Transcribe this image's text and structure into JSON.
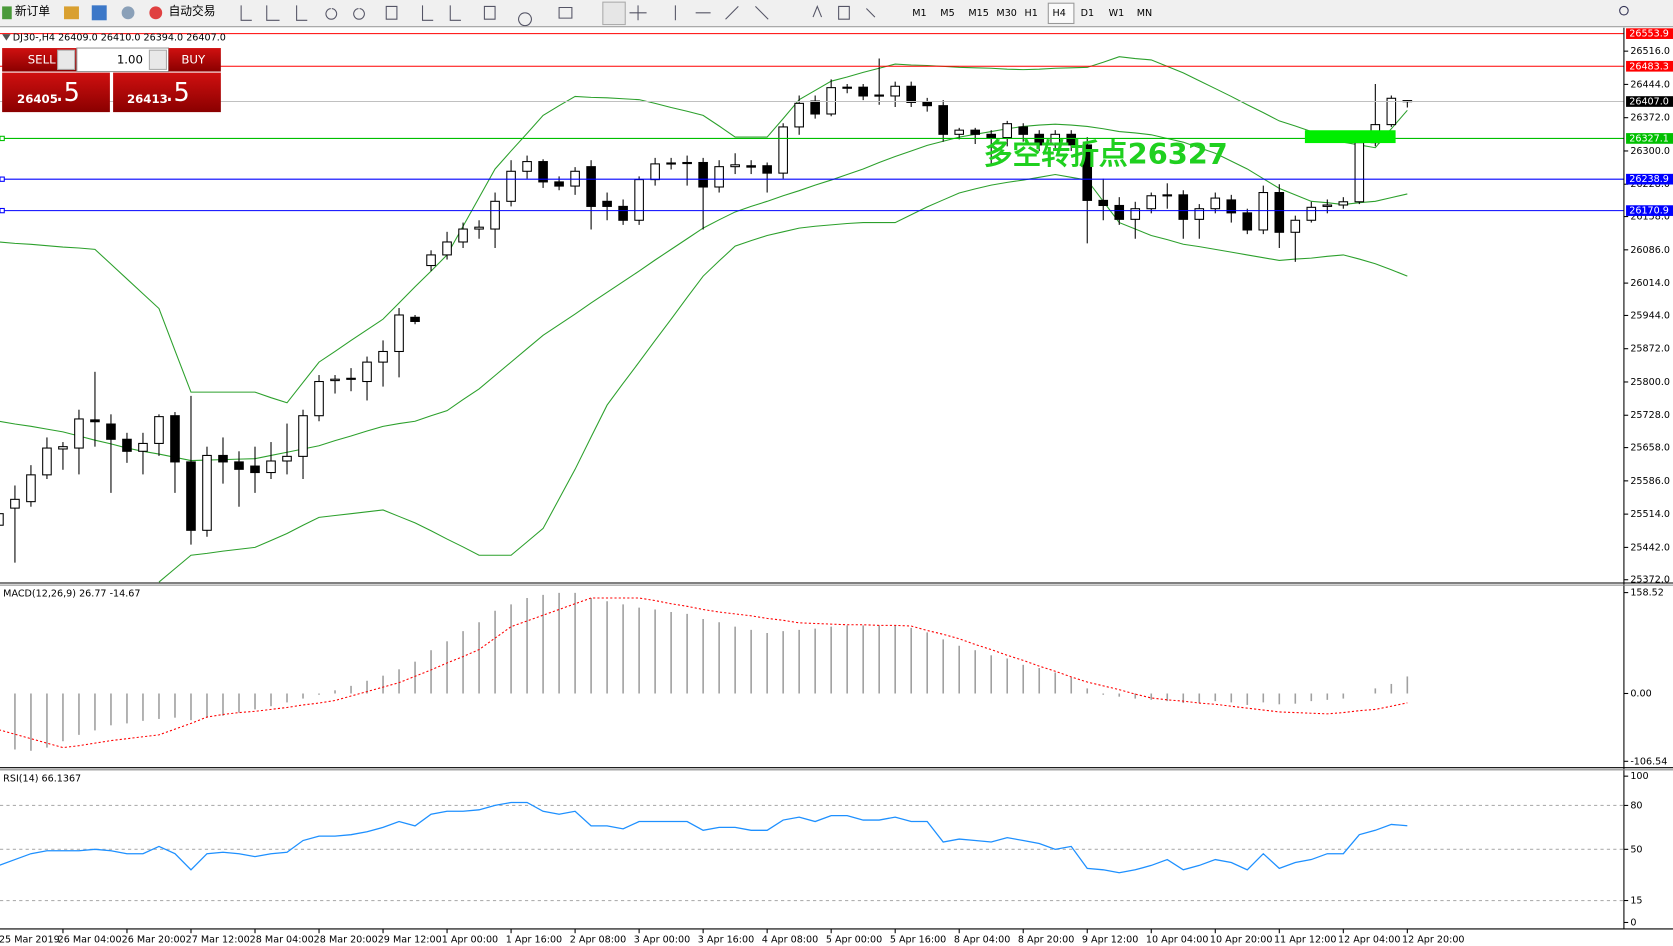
{
  "toolbar": {
    "new_order": "新订单",
    "auto_trading": "自动交易",
    "timeframes": [
      "M1",
      "M5",
      "M15",
      "M30",
      "H1",
      "H4",
      "D1",
      "W1",
      "MN"
    ],
    "active": "H4"
  },
  "trade_panel": {
    "sell": "SELL",
    "buy": "BUY",
    "lots": "1.00",
    "bid_main": "26405",
    "bid_pip": ".5",
    "ask_main": "26413",
    "ask_pip": ".5"
  },
  "chart_data": [
    {
      "type": "candlestick",
      "title": "DJ30-,H4 26409.0 26410.0 26394.0 26407.0",
      "categories": [
        "25 Mar 2019",
        null,
        null,
        null,
        "26 Mar 04:00",
        null,
        null,
        null,
        "26 Mar 20:00",
        null,
        null,
        null,
        "27 Mar 12:00",
        null,
        null,
        null,
        "28 Mar 04:00",
        null,
        null,
        null,
        "28 Mar 20:00",
        null,
        null,
        null,
        "29 Mar 12:00",
        null,
        null,
        null,
        "1 Apr 00:00",
        null,
        null,
        null,
        "1 Apr 16:00",
        null,
        null,
        null,
        "2 Apr 08:00",
        null,
        null,
        null,
        "3 Apr 00:00",
        null,
        null,
        null,
        "3 Apr 16:00",
        null,
        null,
        null,
        "4 Apr 08:00",
        null,
        null,
        null,
        "5 Apr 00:00",
        null,
        null,
        null,
        "5 Apr 16:00",
        null,
        null,
        null,
        "8 Apr 04:00",
        null,
        null,
        null,
        "8 Apr 20:00",
        null,
        null,
        null,
        "9 Apr 12:00",
        null,
        null,
        null,
        "10 Apr 04:00",
        null,
        null,
        null,
        "10 Apr 20:00",
        null,
        null,
        null,
        "11 Apr 12:00",
        null,
        null,
        null,
        "12 Apr 04:00",
        null,
        null,
        null,
        "12 Apr 20:00"
      ],
      "open": [
        25490,
        25527,
        25541,
        25599,
        25655,
        25657,
        25718,
        25709,
        25676,
        25650,
        25667,
        25727,
        25627,
        25479,
        25641,
        25627,
        25618,
        25604,
        25629,
        25639,
        25727,
        25803,
        25806,
        25801,
        25843,
        25866,
        25940,
        26052,
        26075,
        26103,
        26131,
        26131,
        26191,
        26256,
        26277,
        26233,
        26224,
        26266,
        26191,
        26180,
        26150,
        26238,
        26272,
        26274,
        26275,
        26222,
        26266,
        26268,
        26268,
        26252,
        26352,
        26408,
        26380,
        26436,
        26438,
        26419,
        26419,
        26440,
        26405,
        26398,
        26336,
        26345,
        26336,
        26329,
        26352,
        26336,
        26313,
        26336,
        26313,
        26193,
        26182,
        26152,
        26175,
        26203,
        26205,
        26152,
        26175,
        26194,
        26166,
        26129,
        26210,
        26124,
        26150,
        26180,
        26183,
        26190,
        26318,
        26357,
        26409
      ],
      "high": [
        25530,
        25576,
        25620,
        25680,
        25670,
        25740,
        25822,
        25730,
        25690,
        25690,
        25730,
        25735,
        25770,
        25660,
        25680,
        25650,
        25660,
        25670,
        25710,
        25740,
        25815,
        25815,
        25830,
        25855,
        25890,
        25960,
        25945,
        26085,
        26125,
        26145,
        26150,
        26210,
        26280,
        26290,
        26282,
        26245,
        26265,
        26280,
        26210,
        26195,
        26245,
        26285,
        26285,
        26290,
        26285,
        26280,
        26295,
        26280,
        26275,
        26360,
        26420,
        26420,
        26455,
        26445,
        26445,
        26500,
        26450,
        26450,
        26415,
        26410,
        26350,
        26350,
        26345,
        26365,
        26360,
        26345,
        26345,
        26345,
        26330,
        26240,
        26200,
        26190,
        26210,
        26230,
        26215,
        26185,
        26210,
        26205,
        26175,
        26225,
        26228,
        26160,
        26190,
        26195,
        26200,
        26325,
        26445,
        26420,
        26410
      ],
      "low": [
        25470,
        25409,
        25530,
        25590,
        25610,
        25600,
        25660,
        25560,
        25625,
        25600,
        25640,
        25560,
        25448,
        25465,
        25580,
        25530,
        25560,
        25590,
        25600,
        25590,
        25715,
        25775,
        25780,
        25760,
        25790,
        25810,
        25925,
        26040,
        26065,
        26090,
        26110,
        26090,
        26180,
        26240,
        26220,
        26215,
        26205,
        26130,
        26150,
        26140,
        26140,
        26225,
        26260,
        26225,
        26130,
        26210,
        26250,
        26250,
        26210,
        26240,
        26335,
        26370,
        26375,
        26425,
        26410,
        26400,
        26395,
        26395,
        26385,
        26320,
        26325,
        26315,
        26270,
        26310,
        26320,
        26300,
        26300,
        26300,
        26100,
        26150,
        26140,
        26110,
        26165,
        26175,
        26110,
        26110,
        26165,
        26145,
        26120,
        26120,
        26090,
        26060,
        26145,
        26165,
        26175,
        26185,
        26310,
        26352,
        26394
      ],
      "close": [
        25515,
        25546,
        25599,
        25657,
        25660,
        25720,
        25714,
        25676,
        25650,
        25667,
        25725,
        25627,
        25479,
        25641,
        25627,
        25611,
        25604,
        25629,
        25639,
        25727,
        25801,
        25806,
        25808,
        25843,
        25866,
        25945,
        25931,
        26075,
        26103,
        26131,
        26135,
        26191,
        26256,
        26277,
        26233,
        26224,
        26256,
        26180,
        26180,
        26150,
        26238,
        26272,
        26274,
        26275,
        26222,
        26266,
        26270,
        26265,
        26252,
        26352,
        26403,
        26380,
        26437,
        26438,
        26419,
        26421,
        26440,
        26405,
        26398,
        26336,
        26345,
        26336,
        26329,
        26359,
        26336,
        26313,
        26336,
        26313,
        26193,
        26182,
        26152,
        26175,
        26203,
        26205,
        26152,
        26175,
        26198,
        26166,
        26129,
        26210,
        26124,
        26150,
        26178,
        26183,
        26190,
        26318,
        26357,
        26414,
        26407
      ],
      "overlays": [
        {
          "color": "#2ca02c",
          "values": [
            26103,
            26100,
            26098,
            26095,
            26092,
            26090,
            26087,
            26055,
            26023,
            25991,
            25959,
            25868,
            25778,
            25778,
            25778,
            25778,
            25778,
            25766,
            25755,
            25799,
            25843,
            25866,
            25890,
            25913,
            25936,
            25971,
            26006,
            26040,
            26075,
            26137,
            26199,
            26261,
            26300,
            26338,
            26377,
            26398,
            26418,
            26416,
            26415,
            26413,
            26411,
            26403,
            26394,
            26386,
            26377,
            26354,
            26330,
            26330,
            26330,
            26370,
            26411,
            26431,
            26451,
            26460,
            26470,
            26479,
            26488,
            26486,
            26485,
            26483,
            26481,
            26480,
            26479,
            26477,
            26476,
            26477,
            26479,
            26480,
            26481,
            26492,
            26504,
            26500,
            26497,
            26483,
            26469,
            26452,
            26435,
            26418,
            26400,
            26383,
            26365,
            26354,
            26342,
            26331,
            26319,
            26313,
            26307,
            26348,
            26388
          ]
        },
        {
          "color": "#2ca02c",
          "values": [
            25715,
            25709,
            25704,
            25698,
            25692,
            25683,
            25674,
            25666,
            25657,
            25650,
            25644,
            25637,
            25630,
            25631,
            25632,
            25633,
            25634,
            25641,
            25648,
            25655,
            25662,
            25673,
            25683,
            25694,
            25704,
            25710,
            25715,
            25727,
            25738,
            25762,
            25785,
            25814,
            25843,
            25872,
            25901,
            25924,
            25947,
            25971,
            25994,
            26017,
            26040,
            26064,
            26087,
            26110,
            26133,
            26151,
            26168,
            26180,
            26191,
            26203,
            26214,
            26226,
            26237,
            26249,
            26261,
            26275,
            26288,
            26300,
            26312,
            26321,
            26330,
            26336,
            26342,
            26348,
            26353,
            26356,
            26358,
            26356,
            26353,
            26348,
            26342,
            26339,
            26335,
            26327,
            26319,
            26307,
            26295,
            26278,
            26261,
            26240,
            26219,
            26205,
            26191,
            26188,
            26184,
            26188,
            26191,
            26199,
            26207
          ]
        },
        {
          "color": "#2ca02c",
          "values": [
            null,
            null,
            null,
            null,
            null,
            null,
            null,
            null,
            null,
            null,
            25367,
            25396,
            25425,
            25429,
            25434,
            25438,
            25442,
            25457,
            25472,
            25490,
            25507,
            25511,
            25515,
            25519,
            25523,
            25509,
            25495,
            25478,
            25460,
            25443,
            25425,
            25425,
            25425,
            25454,
            25483,
            25547,
            25611,
            25681,
            25750,
            25797,
            25843,
            25890,
            25936,
            25983,
            26029,
            26062,
            26094,
            26106,
            26117,
            26125,
            26133,
            26137,
            26140,
            26143,
            26145,
            26145,
            26145,
            26162,
            26179,
            26194,
            26209,
            26218,
            26226,
            26232,
            26237,
            26243,
            26249,
            26243,
            26237,
            26191,
            26145,
            26131,
            26117,
            26108,
            26098,
            26093,
            26087,
            26081,
            26075,
            26069,
            26063,
            26066,
            26068,
            26072,
            26075,
            26066,
            26056,
            26043,
            26029
          ]
        }
      ],
      "hlines": [
        {
          "value": 26553.9,
          "color": "#ff0000"
        },
        {
          "value": 26483.3,
          "color": "#ff0000"
        },
        {
          "value": 26407,
          "label": "26407.0",
          "color": "#c0c0c0",
          "tag_color": "#000000"
        },
        {
          "value": 26327.1,
          "color": "#00c000"
        },
        {
          "value": 26238.9,
          "color": "#0000ff"
        },
        {
          "value": 26170.9,
          "color": "#0000ff"
        }
      ],
      "annotation": "多空转折点26327",
      "annotation_color": "#1fd01f",
      "ylim": [
        25365,
        26562
      ],
      "yticks": [
        {
          "value": 26516,
          "label": "26516.0"
        },
        {
          "value": 26444,
          "label": "26444.0"
        },
        {
          "value": 26372,
          "label": "26372.0"
        },
        {
          "value": 26300,
          "label": "26300.0"
        },
        {
          "value": 26228,
          "label": "26228.0"
        },
        {
          "value": 26158,
          "label": "26158.0"
        },
        {
          "value": 26086,
          "label": "26086.0"
        },
        {
          "value": 26014,
          "label": "26014.0"
        },
        {
          "value": 25944,
          "label": "25944.0"
        },
        {
          "value": 25872,
          "label": "25872.0"
        },
        {
          "value": 25800,
          "label": "25800.0"
        },
        {
          "value": 25728,
          "label": "25728.0"
        },
        {
          "value": 25658,
          "label": "25658.0"
        },
        {
          "value": 25586,
          "label": "25586.0"
        },
        {
          "value": 25514,
          "label": "25514.0"
        },
        {
          "value": 25442,
          "label": "25442.0"
        },
        {
          "value": 25372,
          "label": "25372.0"
        }
      ]
    },
    {
      "type": "macd",
      "title": "MACD(12,26,9) 26.77 -14.67",
      "histogram": {
        "color": "#a0a0a0",
        "values": [
          -85,
          -88,
          -90,
          -85,
          -75,
          -65,
          -58,
          -50,
          -47,
          -43,
          -40,
          -38,
          -42,
          -38,
          -35,
          -30,
          -25,
          -20,
          -14,
          -8,
          -2,
          5,
          12,
          20,
          28,
          38,
          50,
          68,
          82,
          98,
          112,
          130,
          140,
          150,
          155,
          158,
          158,
          150,
          145,
          140,
          135,
          132,
          128,
          125,
          117,
          112,
          105,
          100,
          95,
          98,
          100,
          102,
          105,
          107,
          107,
          107,
          107,
          103,
          96,
          85,
          75,
          68,
          60,
          55,
          45,
          40,
          33,
          25,
          8,
          -2,
          -5,
          -8,
          -10,
          -12,
          -15,
          -15,
          -12,
          -14,
          -18,
          -14,
          -17,
          -16,
          -12,
          -10,
          -8,
          0,
          8,
          15,
          26.77
        ]
      },
      "signal": {
        "color": "#ff0000",
        "values": [
          -57,
          -64,
          -71,
          -78,
          -85,
          -82,
          -78,
          -74,
          -71,
          -68,
          -65,
          -56,
          -47,
          -37,
          -33,
          -30,
          -28,
          -25,
          -22,
          -18,
          -15,
          -11,
          -4,
          3,
          10,
          17,
          27,
          37,
          48,
          58,
          69,
          87,
          105,
          114,
          123,
          132,
          141,
          150,
          150,
          150,
          150,
          146,
          141,
          137,
          132,
          128,
          125,
          122,
          118,
          115,
          111,
          110,
          109,
          108,
          108,
          107,
          107,
          106,
          99,
          93,
          86,
          77,
          69,
          60,
          52,
          43,
          35,
          26,
          18,
          12,
          6,
          -1,
          -7,
          -10,
          -12,
          -15,
          -17,
          -20,
          -23,
          -26,
          -29,
          -30,
          -31,
          -32,
          -30,
          -27,
          -25,
          -20,
          -14.67
        ]
      },
      "ylim": [
        -114.9,
        168.6
      ],
      "yticks": [
        158.52,
        {
          "value": 0,
          "label": "0.00"
        },
        -106.54
      ]
    },
    {
      "type": "line",
      "title": "RSI(14) 66.1367",
      "color": "#1e90ff",
      "values": [
        39,
        43,
        47,
        49,
        49,
        49,
        50,
        49,
        47,
        47,
        52,
        47,
        36,
        47,
        48,
        47,
        45,
        47,
        48,
        56,
        59,
        59,
        60,
        62,
        65,
        69,
        66,
        74,
        76,
        76,
        77,
        80,
        82,
        82,
        76,
        74,
        76,
        66,
        66,
        64,
        69,
        69,
        69,
        69,
        63,
        65,
        65,
        63,
        63,
        70,
        72,
        69,
        73,
        73,
        70,
        70,
        72,
        69,
        69,
        55,
        57,
        56,
        55,
        58,
        56,
        54,
        50,
        52,
        37,
        36,
        34,
        36,
        39,
        43,
        36,
        39,
        43,
        41,
        36,
        47,
        37,
        41,
        43,
        47,
        47,
        60,
        63,
        67,
        66.1367
      ],
      "levels": [
        80,
        50,
        15
      ],
      "ylim": [
        -4.4,
        103.6
      ],
      "yticks": [
        100,
        80,
        50,
        15,
        0
      ]
    }
  ]
}
